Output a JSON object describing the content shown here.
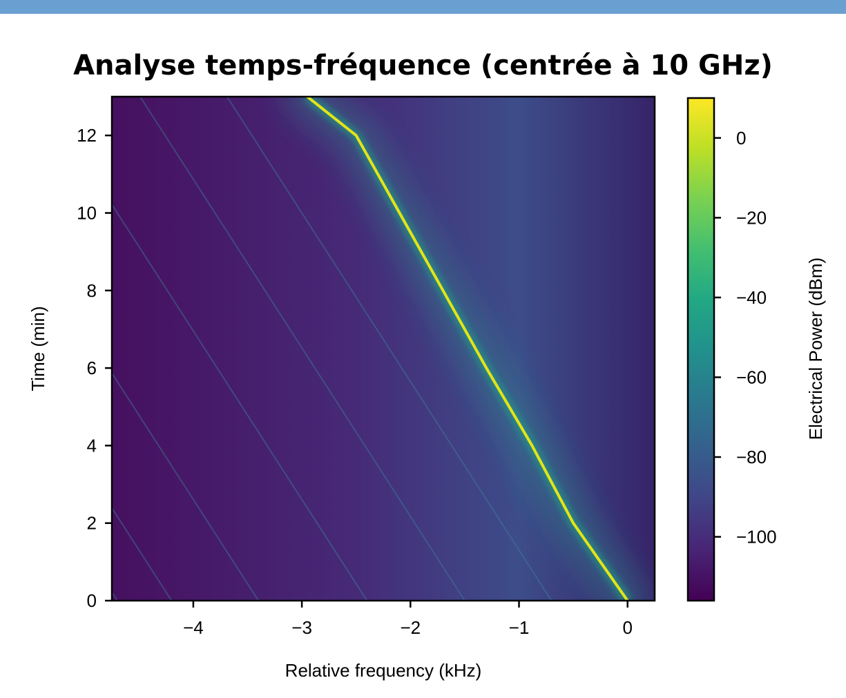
{
  "chart_data": {
    "type": "heatmap",
    "title": "Analyse temps-fréquence (centrée à 10 GHz)",
    "xlabel": "Relative frequency (kHz)",
    "ylabel": "Time (min)",
    "xlim": [
      -4.75,
      0.25
    ],
    "ylim": [
      0,
      13
    ],
    "x_ticks": [
      -4,
      -3,
      -2,
      -1,
      0
    ],
    "y_ticks": [
      0,
      2,
      4,
      6,
      8,
      10,
      12
    ],
    "colorbar": {
      "label": "Electrical Power (dBm)",
      "colormap": "viridis",
      "range": [
        -116,
        10
      ],
      "ticks": [
        0,
        -20,
        -40,
        -60,
        -80,
        -100
      ]
    },
    "main_line": {
      "description_value": "peak track",
      "power_dbm": 10,
      "points": [
        [
          0,
          0
        ],
        [
          -0.5,
          2
        ],
        [
          -0.88,
          4
        ],
        [
          -1.3,
          6
        ],
        [
          -1.7,
          8
        ],
        [
          -2.1,
          10
        ],
        [
          -2.5,
          12
        ],
        [
          -2.95,
          13
        ]
      ]
    },
    "faint_lines_start_freq": [
      -4.7,
      -4.2,
      -3.4,
      -2.4,
      -1.5,
      -0.7
    ],
    "faint_lines_slope_khz_per_min": -0.23,
    "background_power_dbm": -112,
    "colors": {
      "header_bar": "#6a9fd2",
      "axis": "#000000"
    }
  }
}
